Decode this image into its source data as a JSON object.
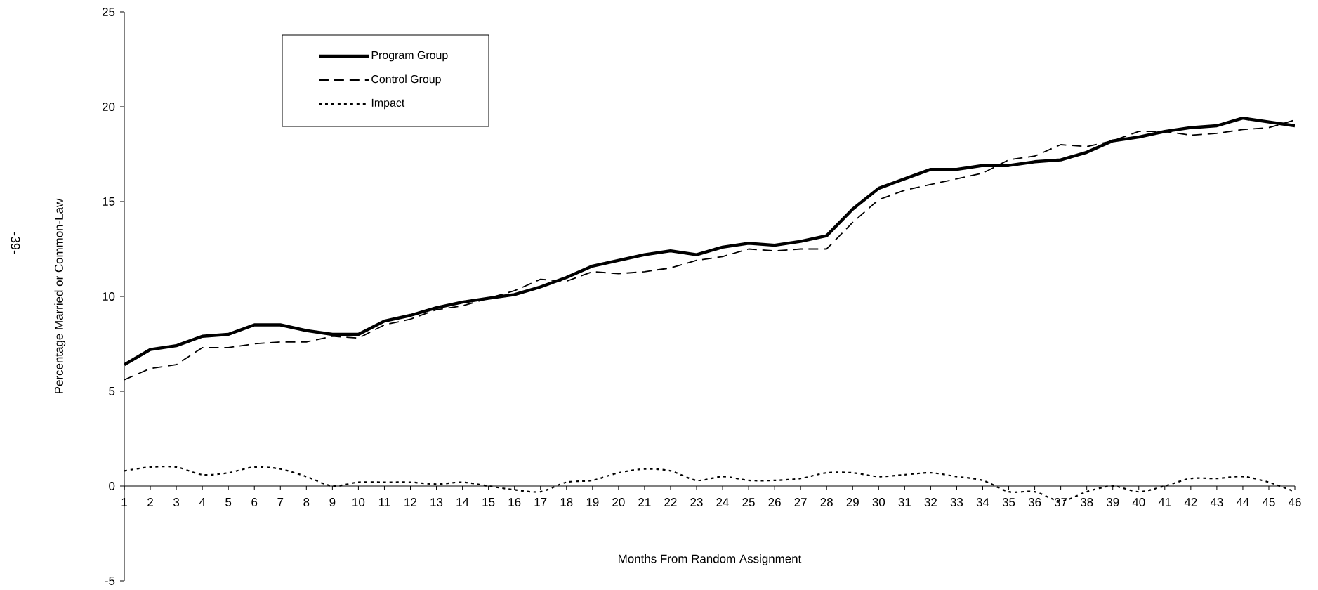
{
  "chart_data": {
    "type": "line",
    "xlabel": "Months From Random Assignment",
    "ylabel": "Percentage Married or Common-Law",
    "annotations": [
      "-39-"
    ],
    "categories": [
      "1",
      "2",
      "3",
      "4",
      "5",
      "6",
      "7",
      "8",
      "9",
      "10",
      "11",
      "12",
      "13",
      "14",
      "15",
      "16",
      "17",
      "18",
      "19",
      "20",
      "21",
      "22",
      "23",
      "24",
      "25",
      "26",
      "27",
      "28",
      "29",
      "30",
      "31",
      "32",
      "33",
      "34",
      "35",
      "36",
      "37",
      "38",
      "39",
      "40",
      "41",
      "42",
      "43",
      "44",
      "45",
      "46"
    ],
    "series": [
      {
        "name": "Program Group",
        "color": "#000000",
        "line_style": "solid",
        "values": [
          6.4,
          7.2,
          7.4,
          7.9,
          8.0,
          8.5,
          8.5,
          8.2,
          8.0,
          8.0,
          8.7,
          9.0,
          9.4,
          9.7,
          9.9,
          10.1,
          10.5,
          11.0,
          11.6,
          11.9,
          12.2,
          12.4,
          12.2,
          12.6,
          12.8,
          12.7,
          12.9,
          13.2,
          14.6,
          15.7,
          16.2,
          16.7,
          16.7,
          16.9,
          16.9,
          17.1,
          17.2,
          17.6,
          18.2,
          18.4,
          18.7,
          18.9,
          19.0,
          19.4,
          19.2,
          19.0
        ]
      },
      {
        "name": "Control Group",
        "color": "#000000",
        "line_style": "dashed",
        "values": [
          5.6,
          6.2,
          6.4,
          7.3,
          7.3,
          7.5,
          7.6,
          7.6,
          7.9,
          7.8,
          8.5,
          8.8,
          9.3,
          9.5,
          9.9,
          10.3,
          10.9,
          10.8,
          11.3,
          11.2,
          11.3,
          11.5,
          11.9,
          12.1,
          12.5,
          12.4,
          12.5,
          12.5,
          13.9,
          15.1,
          15.6,
          15.9,
          16.2,
          16.5,
          17.2,
          17.4,
          18.0,
          17.9,
          18.2,
          18.7,
          18.7,
          18.5,
          18.6,
          18.8,
          18.9,
          19.3
        ]
      },
      {
        "name": "Impact",
        "color": "#000000",
        "line_style": "dotted",
        "values": [
          0.8,
          1.0,
          1.0,
          0.6,
          0.7,
          1.0,
          0.9,
          0.5,
          0.0,
          0.2,
          0.2,
          0.2,
          0.1,
          0.2,
          0.0,
          -0.2,
          -0.3,
          0.2,
          0.3,
          0.7,
          0.9,
          0.8,
          0.3,
          0.5,
          0.3,
          0.3,
          0.4,
          0.7,
          0.7,
          0.5,
          0.6,
          0.7,
          0.5,
          0.3,
          -0.3,
          -0.3,
          -0.8,
          -0.3,
          0.0,
          -0.3,
          0.0,
          0.4,
          0.4,
          0.5,
          0.2,
          -0.3
        ]
      }
    ],
    "ylim": [
      -5,
      25
    ],
    "yticks": [
      -5,
      0,
      5,
      10,
      15,
      20,
      25
    ],
    "grid": false,
    "legend": "top left",
    "marker": "none"
  }
}
